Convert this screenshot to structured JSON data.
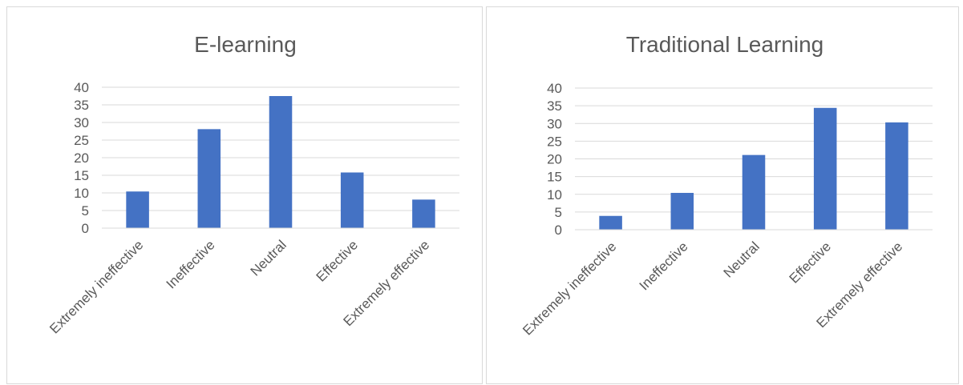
{
  "chart_data": [
    {
      "type": "bar",
      "title": "E-learning",
      "categories": [
        "Extremely ineffective",
        "Ineffective",
        "Neutral",
        "Effective",
        "Extremely effective"
      ],
      "values": [
        10.4,
        28.1,
        37.5,
        15.8,
        8.1
      ],
      "ylim": [
        0,
        40
      ],
      "yticks": [
        0,
        5,
        10,
        15,
        20,
        25,
        30,
        35,
        40
      ],
      "grid": true,
      "legend": "none",
      "bar_color": "#4472c4"
    },
    {
      "type": "bar",
      "title": "Traditional Learning",
      "categories": [
        "Extremely ineffective",
        "Ineffective",
        "Neutral",
        "Effective",
        "Extremely effective"
      ],
      "values": [
        3.9,
        10.4,
        21.1,
        34.4,
        30.3
      ],
      "ylim": [
        0,
        40
      ],
      "yticks": [
        0,
        5,
        10,
        15,
        20,
        25,
        30,
        35,
        40
      ],
      "grid": true,
      "legend": "none",
      "bar_color": "#4472c4"
    }
  ]
}
